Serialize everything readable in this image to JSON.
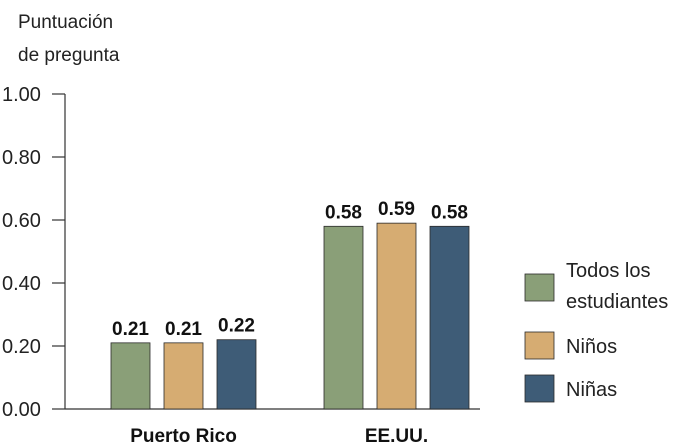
{
  "chart_data": {
    "type": "bar",
    "ylabel_lines": [
      "Puntuación",
      "de pregunta"
    ],
    "categories": [
      "Puerto Rico",
      "EE.UU."
    ],
    "series": [
      {
        "name_lines": [
          "Todos los",
          "estudiantes"
        ],
        "color": "#8a9f78",
        "values": [
          0.21,
          0.58
        ]
      },
      {
        "name_lines": [
          "Niños"
        ],
        "color": "#d6ac72",
        "values": [
          0.21,
          0.59
        ]
      },
      {
        "name_lines": [
          "Niñas"
        ],
        "color": "#3e5c77",
        "values": [
          0.22,
          0.58
        ]
      }
    ],
    "value_labels": [
      [
        "0.21",
        "0.58"
      ],
      [
        "0.21",
        "0.59"
      ],
      [
        "0.22",
        "0.58"
      ]
    ],
    "ylim": [
      0,
      1
    ],
    "yticks": [
      0,
      0.2,
      0.4,
      0.6,
      0.8,
      1.0
    ],
    "ytick_labels": [
      "0.00",
      "0.20",
      "0.40",
      "0.60",
      "0.80",
      "1.00"
    ],
    "grid": false,
    "legend_position": "right"
  }
}
